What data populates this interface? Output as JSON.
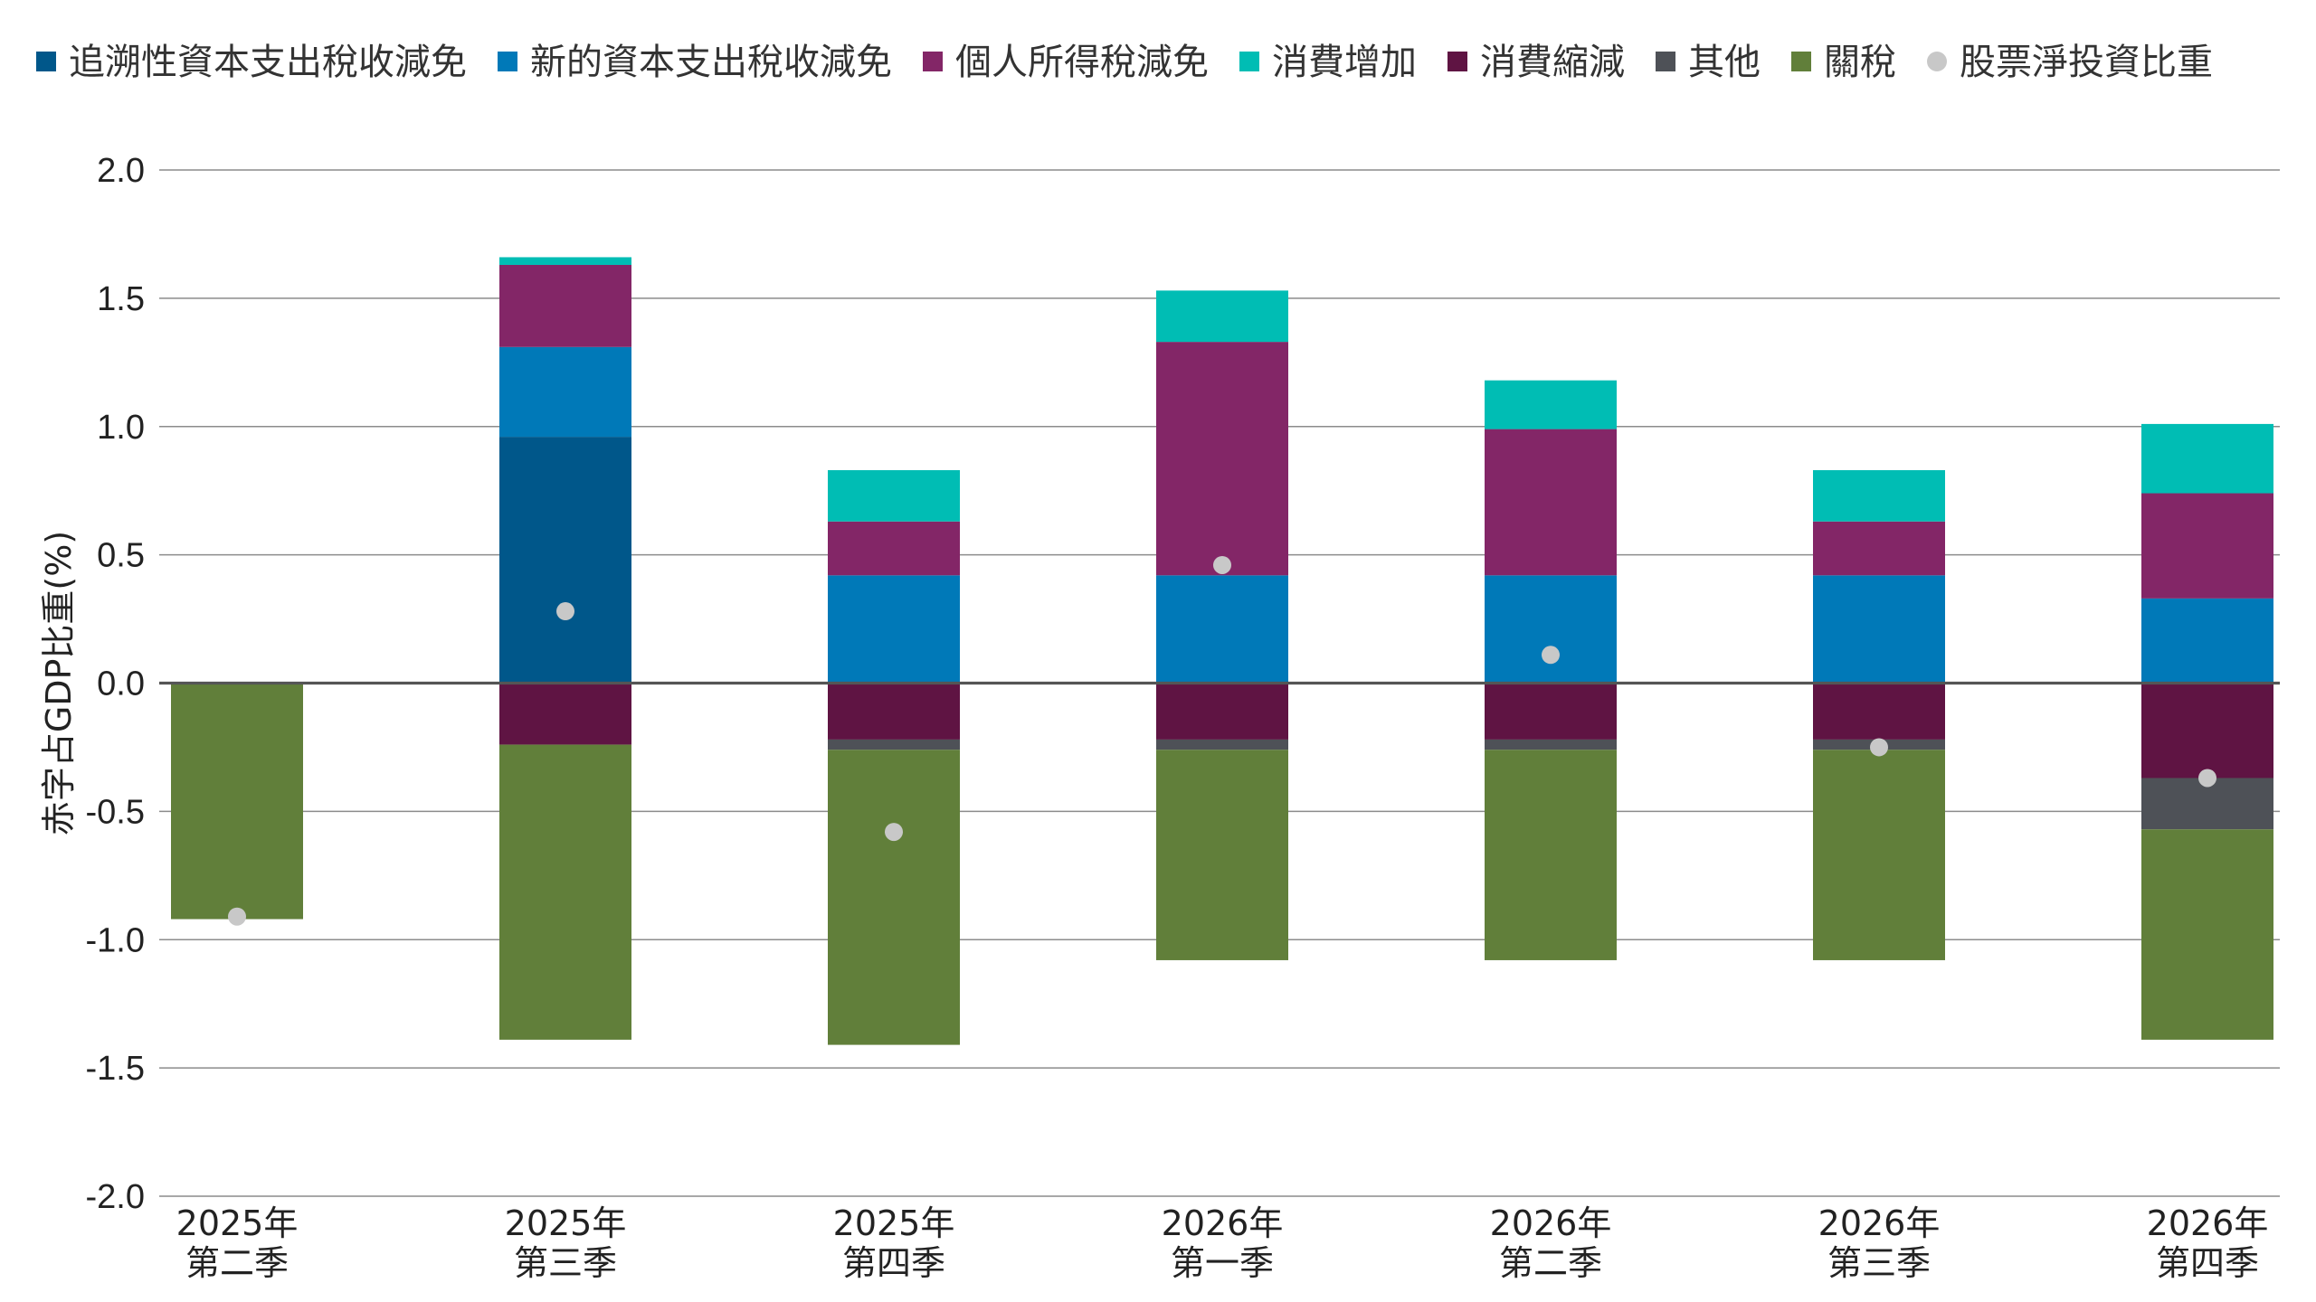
{
  "chart_data": {
    "type": "bar",
    "stacked": true,
    "ylabel": "赤字占GDP比重(%)",
    "ylim": [
      -2.0,
      2.0
    ],
    "yticks": [
      "2.0",
      "1.5",
      "1.0",
      "0.5",
      "0.0",
      "-0.5",
      "-1.0",
      "-1.5",
      "-2.0"
    ],
    "ytick_values": [
      2.0,
      1.5,
      1.0,
      0.5,
      0.0,
      -0.5,
      -1.0,
      -1.5,
      -2.0
    ],
    "grid": true,
    "legend_position": "top",
    "categories": [
      [
        "2025年",
        "第二季"
      ],
      [
        "2025年",
        "第三季"
      ],
      [
        "2025年",
        "第四季"
      ],
      [
        "2026年",
        "第一季"
      ],
      [
        "2026年",
        "第二季"
      ],
      [
        "2026年",
        "第三季"
      ],
      [
        "2026年",
        "第四季"
      ]
    ],
    "series": [
      {
        "name": "追溯性資本支出稅收減免",
        "color": "#00578a",
        "values": [
          0,
          0.96,
          0,
          0,
          0,
          0,
          0
        ]
      },
      {
        "name": "新的資本支出稅收減免",
        "color": "#0079b8",
        "values": [
          0,
          0.35,
          0.42,
          0.42,
          0.42,
          0.42,
          0.33
        ]
      },
      {
        "name": "個人所得稅減免",
        "color": "#832667",
        "values": [
          0,
          0.32,
          0.21,
          0.91,
          0.57,
          0.21,
          0.41
        ]
      },
      {
        "name": "消費增加",
        "color": "#00bdb4",
        "values": [
          0,
          0.03,
          0.2,
          0.2,
          0.19,
          0.2,
          0.27
        ]
      },
      {
        "name": "消費縮減",
        "color": "#5f1443",
        "values": [
          0,
          -0.24,
          -0.22,
          -0.22,
          -0.22,
          -0.22,
          -0.37
        ]
      },
      {
        "name": "其他",
        "color": "#4e5157",
        "values": [
          0,
          0,
          -0.04,
          -0.04,
          -0.04,
          -0.04,
          -0.2
        ]
      },
      {
        "name": "關稅",
        "color": "#617f3a",
        "values": [
          -0.92,
          -1.15,
          -1.15,
          -0.82,
          -0.82,
          -0.82,
          -0.82
        ]
      }
    ],
    "markers": {
      "name": "股票淨投資比重",
      "color": "#c8c8c8",
      "values": [
        -0.91,
        0.28,
        -0.58,
        0.46,
        0.11,
        -0.25,
        -0.37
      ]
    }
  }
}
